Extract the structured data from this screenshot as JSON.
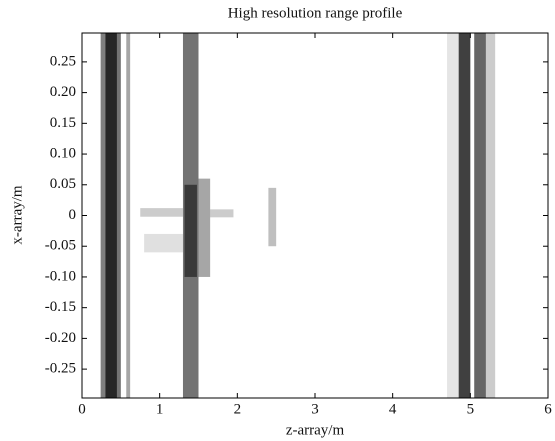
{
  "chart_data": {
    "type": "heatmap",
    "title": "High resolution range profile",
    "xlabel": "z-array/m",
    "ylabel": "x-array/m",
    "xlim": [
      0,
      6
    ],
    "ylim": [
      -0.297,
      0.297
    ],
    "xticks": [
      0,
      1,
      2,
      3,
      4,
      5,
      6
    ],
    "yticks": [
      -0.25,
      {
        "value": -0.2,
        "label": "-0.20"
      },
      -0.15,
      {
        "value": -0.1,
        "label": "-0.10"
      },
      -0.05,
      0,
      0.05,
      {
        "value": 0.1,
        "label": "0.10"
      },
      0.15,
      {
        "value": 0.2,
        "label": "0.20"
      },
      0.25
    ],
    "color": "#000000",
    "bands": [
      {
        "z": [
          0.24,
          0.3
        ],
        "x": [
          -0.297,
          0.297
        ],
        "intensity": 0.5
      },
      {
        "z": [
          0.3,
          0.45
        ],
        "x": [
          -0.297,
          0.297
        ],
        "intensity": 0.85
      },
      {
        "z": [
          0.45,
          0.5
        ],
        "x": [
          -0.297,
          0.297
        ],
        "intensity": 0.55
      },
      {
        "z": [
          0.57,
          0.62
        ],
        "x": [
          -0.297,
          0.297
        ],
        "intensity": 0.35
      },
      {
        "z": [
          0.75,
          1.3
        ],
        "x": [
          -0.002,
          0.012
        ],
        "intensity": 0.2
      },
      {
        "z": [
          0.8,
          1.3
        ],
        "x": [
          -0.06,
          -0.03
        ],
        "intensity": 0.12
      },
      {
        "z": [
          1.3,
          1.5
        ],
        "x": [
          -0.297,
          0.297
        ],
        "intensity": 0.55
      },
      {
        "z": [
          1.32,
          1.48
        ],
        "x": [
          -0.1,
          0.05
        ],
        "intensity": 0.5
      },
      {
        "z": [
          1.5,
          1.65
        ],
        "x": [
          -0.1,
          0.06
        ],
        "intensity": 0.35
      },
      {
        "z": [
          1.65,
          1.95
        ],
        "x": [
          -0.003,
          0.01
        ],
        "intensity": 0.2
      },
      {
        "z": [
          2.4,
          2.5
        ],
        "x": [
          -0.05,
          0.045
        ],
        "intensity": 0.25
      },
      {
        "z": [
          4.85,
          5.0
        ],
        "x": [
          -0.297,
          0.297
        ],
        "intensity": 0.75
      },
      {
        "z": [
          4.7,
          4.85
        ],
        "x": [
          -0.297,
          0.297
        ],
        "intensity": 0.1
      },
      {
        "z": [
          5.05,
          5.2
        ],
        "x": [
          -0.297,
          0.297
        ],
        "intensity": 0.6
      },
      {
        "z": [
          5.2,
          5.32
        ],
        "x": [
          -0.297,
          0.297
        ],
        "intensity": 0.2
      }
    ]
  }
}
